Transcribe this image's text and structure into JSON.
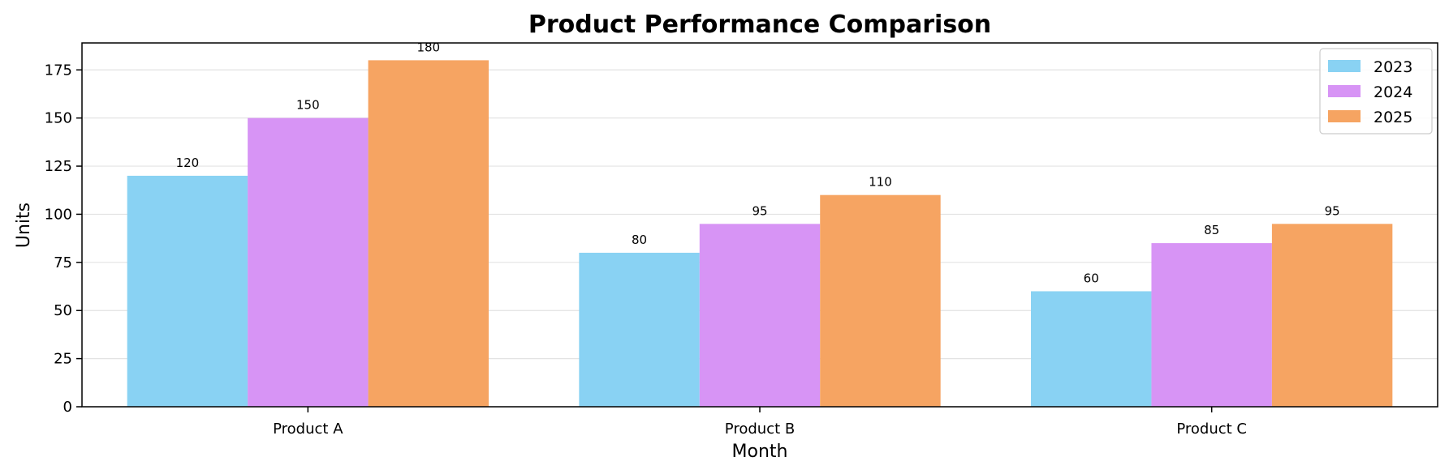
{
  "chart_data": {
    "type": "bar",
    "title": "Product Performance Comparison",
    "xlabel": "Month",
    "ylabel": "Units",
    "categories": [
      "Product A",
      "Product B",
      "Product C"
    ],
    "series": [
      {
        "name": "2023",
        "color": "#89d2f3",
        "values": [
          120,
          80,
          60
        ]
      },
      {
        "name": "2024",
        "color": "#d794f5",
        "values": [
          150,
          95,
          85
        ]
      },
      {
        "name": "2025",
        "color": "#f6a462",
        "values": [
          180,
          110,
          95
        ]
      }
    ],
    "ylim": [
      0,
      189
    ],
    "yticks": [
      0,
      25,
      50,
      75,
      100,
      125,
      150,
      175
    ],
    "grid": "horizontal",
    "legend_position": "top-right",
    "show_value_labels": true
  }
}
